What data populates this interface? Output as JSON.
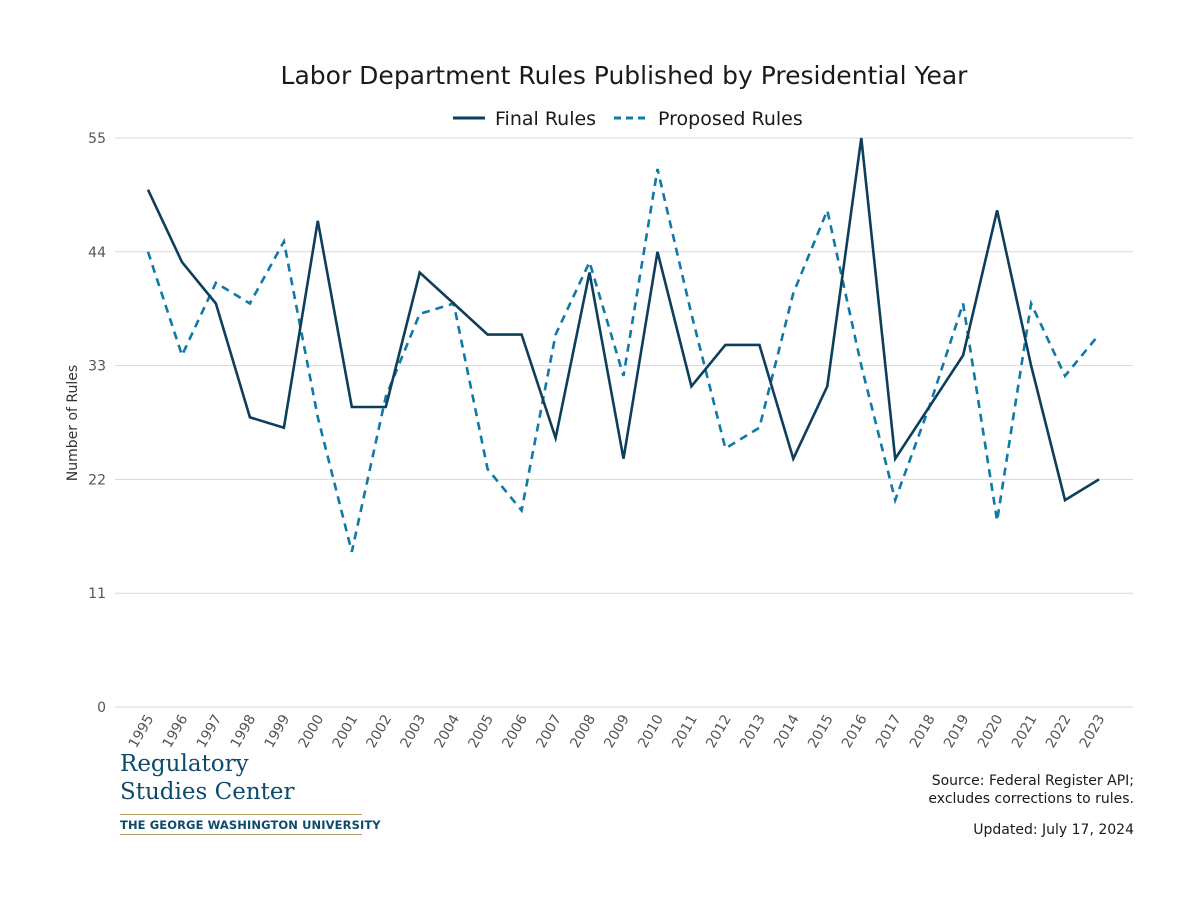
{
  "chart_data": {
    "type": "line",
    "title": "Labor Department Rules Published by Presidential Year",
    "xlabel": "",
    "ylabel": "Number of Rules",
    "categories": [
      "1995",
      "1996",
      "1997",
      "1998",
      "1999",
      "2000",
      "2001",
      "2002",
      "2003",
      "2004",
      "2005",
      "2006",
      "2007",
      "2008",
      "2009",
      "2010",
      "2011",
      "2012",
      "2013",
      "2014",
      "2015",
      "2016",
      "2017",
      "2018",
      "2019",
      "2020",
      "2021",
      "2022",
      "2023"
    ],
    "ylim": [
      0,
      55
    ],
    "yticks": [
      0,
      11,
      22,
      33,
      44,
      55
    ],
    "grid": true,
    "legend_position": "top-center",
    "series": [
      {
        "name": "Final Rules",
        "style": "solid",
        "color": "#0d3f5c",
        "values": [
          50,
          43,
          39,
          28,
          27,
          47,
          29,
          29,
          42,
          39,
          36,
          36,
          26,
          42,
          24,
          44,
          31,
          35,
          35,
          24,
          31,
          55,
          24,
          29,
          34,
          48,
          33,
          20,
          22
        ]
      },
      {
        "name": "Proposed Rules",
        "style": "dashed",
        "color": "#0f79a8",
        "values": [
          44,
          34,
          41,
          39,
          45,
          28,
          15,
          30,
          38,
          39,
          23,
          19,
          36,
          43,
          32,
          52,
          38,
          25,
          27,
          40,
          48,
          33,
          20,
          29,
          39,
          18,
          39,
          32,
          36
        ]
      }
    ]
  },
  "footer": {
    "logo_line1": "Regulatory",
    "logo_line2": "Studies Center",
    "logo_university": "THE GEORGE WASHINGTON UNIVERSITY",
    "source_line1": "Source: Federal Register API;",
    "source_line2": "excludes corrections to rules.",
    "updated": "Updated: July 17, 2024"
  }
}
